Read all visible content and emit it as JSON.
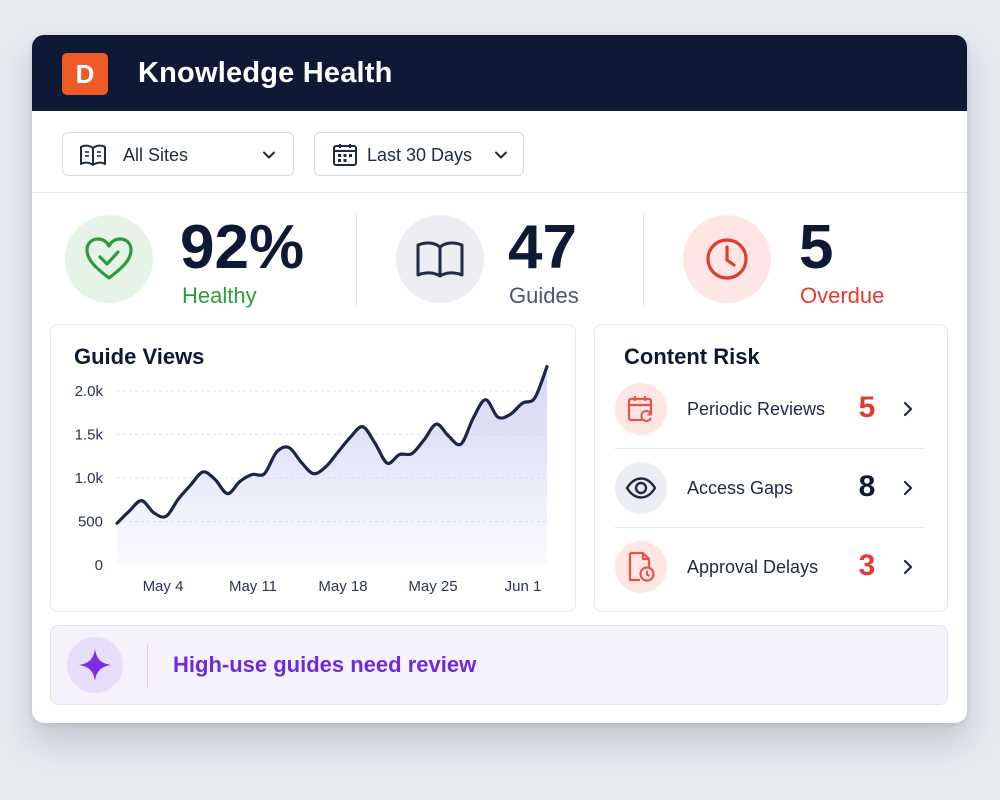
{
  "app": {
    "logo_letter": "D",
    "title": "Knowledge Health"
  },
  "filters": {
    "site": {
      "label": "All Sites",
      "icon": "book-open-icon"
    },
    "range": {
      "label": "Last 30 Days",
      "icon": "calendar-icon"
    }
  },
  "stats": [
    {
      "value": "92%",
      "label": "Healthy",
      "icon": "heart-check-icon",
      "color": "#2e9a3e",
      "bg": "#e6f4e8"
    },
    {
      "value": "47",
      "label": "Guides",
      "icon": "book-icon",
      "color": "#4a5672",
      "bg": "#eceef3"
    },
    {
      "value": "5",
      "label": "Overdue",
      "icon": "clock-icon",
      "color": "#e53a2f",
      "bg": "#fde6e4"
    }
  ],
  "guide_views": {
    "title": "Guide Views"
  },
  "chart_data": {
    "type": "area",
    "title": "Guide Views",
    "xlabel": "",
    "ylabel": "",
    "y_ticks": [
      "2.0k",
      "1.5k",
      "1.0k",
      "500",
      "0"
    ],
    "x_ticks": [
      "May 4",
      "May 11",
      "May 18",
      "May 25",
      "Jun 1"
    ],
    "ylim": [
      0,
      2000
    ],
    "grid": true,
    "series": [
      {
        "values": [
          480,
          620,
          740,
          600,
          560,
          760,
          920,
          1070,
          980,
          820,
          960,
          1040,
          1050,
          1300,
          1350,
          1180,
          1050,
          1130,
          1300,
          1470,
          1590,
          1400,
          1170,
          1270,
          1280,
          1440,
          1620,
          1480,
          1390,
          1690,
          1900,
          1700,
          1730,
          1860,
          1920,
          2280
        ]
      }
    ],
    "color": "#1c2647",
    "fill": "#c9cff2"
  },
  "content_risk": {
    "title": "Content Risk",
    "items": [
      {
        "label": "Periodic Reviews",
        "count": "5",
        "icon": "calendar-refresh-icon",
        "count_color": "#e53a2f",
        "icon_color": "#e5534b",
        "icon_bg": "#fde6e4"
      },
      {
        "label": "Access Gaps",
        "count": "8",
        "icon": "eye-icon",
        "count_color": "#0e1a35",
        "icon_color": "#1f2a44",
        "icon_bg": "#eceef3"
      },
      {
        "label": "Approval Delays",
        "count": "3",
        "icon": "document-clock-icon",
        "count_color": "#e53a2f",
        "icon_color": "#e5534b",
        "icon_bg": "#fde6e4"
      }
    ]
  },
  "insight": {
    "text": "High-use guides need review",
    "icon": "sparkle-icon"
  }
}
